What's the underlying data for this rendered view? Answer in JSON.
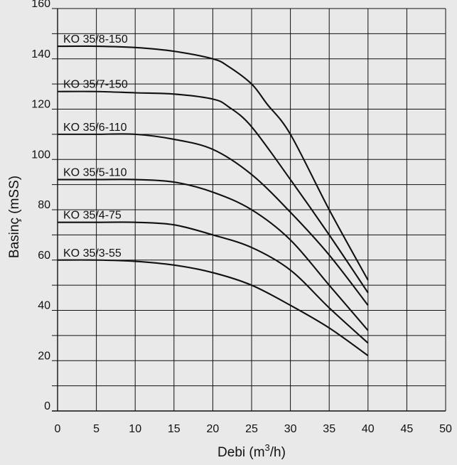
{
  "chart_data": {
    "type": "line",
    "title": "",
    "xlabel": "Debi (m³/h)",
    "xlabel_parts": {
      "base": "Debi (m",
      "sup": "3",
      "tail": "/h)"
    },
    "ylabel": "Basinç (mSS)",
    "xlim": [
      0,
      50
    ],
    "ylim": [
      0,
      160
    ],
    "x_ticks": [
      "0",
      "5",
      "10",
      "15",
      "20",
      "25",
      "30",
      "35",
      "40",
      "45",
      "50"
    ],
    "y_ticks": [
      "0",
      "20",
      "40",
      "60",
      "80",
      "100",
      "120",
      "140",
      "160"
    ],
    "grid": true,
    "series": [
      {
        "name": "KO 35/8-150",
        "x": [
          0,
          5,
          10,
          15,
          20,
          22,
          25,
          27,
          30,
          35,
          40
        ],
        "y": [
          145,
          145,
          144.5,
          143,
          140,
          137,
          130,
          122,
          110,
          80,
          52
        ]
      },
      {
        "name": "KO 35/7-150",
        "x": [
          0,
          5,
          10,
          15,
          20,
          22,
          25,
          30,
          35,
          40
        ],
        "y": [
          127,
          127,
          126.5,
          126,
          124,
          121,
          113,
          92,
          70,
          47
        ]
      },
      {
        "name": "KO 35/6-110",
        "x": [
          0,
          5,
          10,
          15,
          20,
          25,
          30,
          35,
          40
        ],
        "y": [
          110,
          110,
          110,
          108,
          104,
          94,
          79,
          62,
          42
        ]
      },
      {
        "name": "KO 35/5-110",
        "x": [
          0,
          5,
          10,
          15,
          20,
          25,
          30,
          35,
          40
        ],
        "y": [
          92,
          92,
          92,
          91,
          87,
          80,
          68,
          50,
          32
        ]
      },
      {
        "name": "KO 35/4-75",
        "x": [
          0,
          5,
          10,
          15,
          20,
          25,
          30,
          35,
          40
        ],
        "y": [
          75,
          75,
          75,
          74,
          70,
          65,
          56,
          41,
          27
        ]
      },
      {
        "name": "KO 35/3-55",
        "x": [
          0,
          5,
          10,
          15,
          20,
          25,
          30,
          35,
          40
        ],
        "y": [
          60,
          60,
          59.5,
          58,
          55,
          50,
          42,
          33,
          22
        ]
      }
    ]
  },
  "colors": {
    "background": "#e9e9e9",
    "line": "#111111",
    "grid": "#111111"
  }
}
